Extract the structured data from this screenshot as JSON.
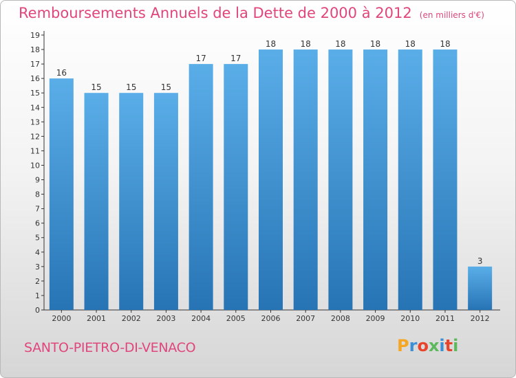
{
  "title": "Remboursements Annuels de la Dette de 2000 à 2012",
  "unit_note": "(en milliers d'€)",
  "commune": "SANTO-PIETRO-DI-VENACO",
  "logo": {
    "text": "Proxiti",
    "letters": [
      "P",
      "r",
      "o",
      "x",
      "i",
      "t",
      "i"
    ],
    "colors": [
      "#f5a623",
      "#3a8fd6",
      "#e8432b",
      "#5cb85c",
      "#3a8fd6",
      "#e8432b",
      "#5cb85c"
    ]
  },
  "colors": {
    "title": "#e0457b",
    "bar_top": "#5aaee8",
    "bar_bottom": "#2774b5",
    "axis": "#333333"
  },
  "chart_data": {
    "type": "bar",
    "title": "Remboursements Annuels de la Dette de 2000 à 2012",
    "subtitle": "(en milliers d'€)",
    "categories": [
      "2000",
      "2001",
      "2002",
      "2003",
      "2004",
      "2005",
      "2006",
      "2007",
      "2008",
      "2009",
      "2010",
      "2011",
      "2012"
    ],
    "values": [
      16,
      15,
      15,
      15,
      17,
      17,
      18,
      18,
      18,
      18,
      18,
      18,
      3
    ],
    "y_ticks": [
      0,
      1,
      2,
      3,
      4,
      5,
      6,
      7,
      8,
      9,
      10,
      11,
      12,
      13,
      14,
      15,
      16,
      17,
      18,
      19
    ],
    "ylim": [
      0,
      19
    ],
    "grid": false,
    "legend": "none"
  }
}
